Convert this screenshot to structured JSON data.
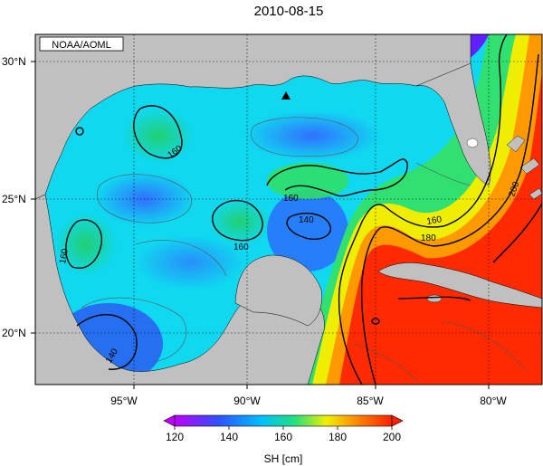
{
  "title": "2010-08-15",
  "credit": "NOAA/AOML",
  "map": {
    "lon_ticks": [
      "95°W",
      "90°W",
      "85°W",
      "80°W"
    ],
    "lat_ticks": [
      "30°N",
      "25°N",
      "20°N"
    ],
    "contour_labels": [
      "160",
      "160",
      "160",
      "160",
      "140",
      "140",
      "160",
      "180",
      "200"
    ],
    "colors": {
      "land": "#c0c0c0",
      "frame": "#000000"
    }
  },
  "colorbar": {
    "ticks": [
      "120",
      "140",
      "160",
      "180",
      "200"
    ],
    "label": "SH [cm]",
    "stops": [
      "#c000ff",
      "#3050ff",
      "#00c0ff",
      "#20e080",
      "#f0f000",
      "#ff8000",
      "#ff2000"
    ]
  }
}
